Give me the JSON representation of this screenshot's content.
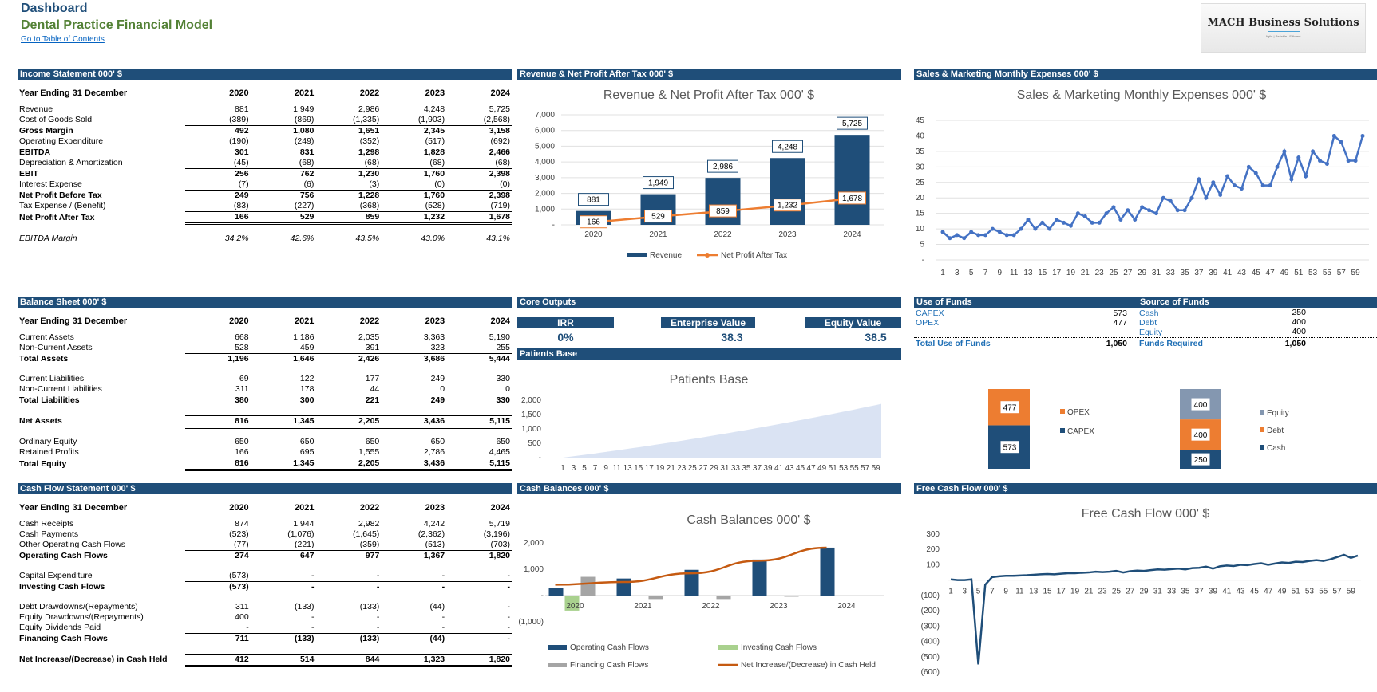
{
  "header": {
    "title": "Dashboard",
    "subtitle": "Dental Practice Financial Model",
    "link": "Go to Table of Contents"
  },
  "logo": {
    "name": "MACH Business Solutions",
    "tagline": "Agile | Reliable | Efficient"
  },
  "sections": {
    "income": "Income Statement 000' $",
    "rev_chart": "Revenue & Net Profit After Tax 000' $",
    "sales": "Sales & Marketing Monthly  Expenses  000' $",
    "balance": "Balance Sheet 000' $",
    "core": "Core Outputs",
    "patients": "Patients Base",
    "use_funds": "Use of Funds",
    "source_funds": "Source  of Funds",
    "cashflow": "Cash Flow Statement 000' $",
    "cash_balances": "Cash Balances 000' $",
    "fcf": "Free Cash Flow 000' $"
  },
  "years": [
    "2020",
    "2021",
    "2022",
    "2023",
    "2024"
  ],
  "year_label": "Year Ending 31 December",
  "income_rows": [
    {
      "label": "Revenue",
      "v": [
        "881",
        "1,949",
        "2,986",
        "4,248",
        "5,725"
      ],
      "style": ""
    },
    {
      "label": "Cost of Goods Sold",
      "v": [
        "(389)",
        "(869)",
        "(1,335)",
        "(1,903)",
        "(2,568)"
      ],
      "style": ""
    },
    {
      "label": "Gross Margin",
      "v": [
        "492",
        "1,080",
        "1,651",
        "2,345",
        "3,158"
      ],
      "style": "bold tl"
    },
    {
      "label": "Operating Expenditure",
      "v": [
        "(190)",
        "(249)",
        "(352)",
        "(517)",
        "(692)"
      ],
      "style": ""
    },
    {
      "label": "EBITDA",
      "v": [
        "301",
        "831",
        "1,298",
        "1,828",
        "2,466"
      ],
      "style": "bold tl"
    },
    {
      "label": "Depreciation & Amortization",
      "v": [
        "(45)",
        "(68)",
        "(68)",
        "(68)",
        "(68)"
      ],
      "style": ""
    },
    {
      "label": "EBIT",
      "v": [
        "256",
        "762",
        "1,230",
        "1,760",
        "2,398"
      ],
      "style": "bold tl"
    },
    {
      "label": "Interest Expense",
      "v": [
        "(7)",
        "(6)",
        "(3)",
        "(0)",
        "(0)"
      ],
      "style": ""
    },
    {
      "label": "Net Profit Before Tax",
      "v": [
        "249",
        "756",
        "1,228",
        "1,760",
        "2,398"
      ],
      "style": "bold tl"
    },
    {
      "label": "Tax Expense / (Benefit)",
      "v": [
        "(83)",
        "(227)",
        "(368)",
        "(528)",
        "(719)"
      ],
      "style": ""
    },
    {
      "label": "Net Profit After Tax",
      "v": [
        "166",
        "529",
        "859",
        "1,232",
        "1,678"
      ],
      "style": "bold tl db"
    }
  ],
  "ebitda_margin": {
    "label": "EBITDA Margin",
    "v": [
      "34.2%",
      "42.6%",
      "43.5%",
      "43.0%",
      "43.1%"
    ]
  },
  "balance_rows": [
    {
      "label": "Current Assets",
      "v": [
        "668",
        "1,186",
        "2,035",
        "3,363",
        "5,190"
      ],
      "style": ""
    },
    {
      "label": "Non-Current Assets",
      "v": [
        "528",
        "459",
        "391",
        "323",
        "255"
      ],
      "style": ""
    },
    {
      "label": "Total Assets",
      "v": [
        "1,196",
        "1,646",
        "2,426",
        "3,686",
        "5,444"
      ],
      "style": "bold tl"
    },
    {
      "gap": true
    },
    {
      "label": "Current Liabilities",
      "v": [
        "69",
        "122",
        "177",
        "249",
        "330"
      ],
      "style": ""
    },
    {
      "label": "Non-Current Liabilities",
      "v": [
        "311",
        "178",
        "44",
        "0",
        "0"
      ],
      "style": ""
    },
    {
      "label": "Total Liabilities",
      "v": [
        "380",
        "300",
        "221",
        "249",
        "330"
      ],
      "style": "bold tl"
    },
    {
      "gap": true
    },
    {
      "label": "Net Assets",
      "v": [
        "816",
        "1,345",
        "2,205",
        "3,436",
        "5,115"
      ],
      "style": "bold tl db"
    },
    {
      "gap": true
    },
    {
      "label": "Ordinary Equity",
      "v": [
        "650",
        "650",
        "650",
        "650",
        "650"
      ],
      "style": ""
    },
    {
      "label": "Retained Profits",
      "v": [
        "166",
        "695",
        "1,555",
        "2,786",
        "4,465"
      ],
      "style": ""
    },
    {
      "label": "Total Equity",
      "v": [
        "816",
        "1,345",
        "2,205",
        "3,436",
        "5,115"
      ],
      "style": "bold tl db"
    }
  ],
  "cashflow_rows": [
    {
      "label": "Cash Receipts",
      "v": [
        "874",
        "1,944",
        "2,982",
        "4,242",
        "5,719"
      ],
      "style": ""
    },
    {
      "label": "Cash Payments",
      "v": [
        "(523)",
        "(1,076)",
        "(1,645)",
        "(2,362)",
        "(3,196)"
      ],
      "style": ""
    },
    {
      "label": "Other Operating Cash Flows",
      "v": [
        "(77)",
        "(221)",
        "(359)",
        "(513)",
        "(703)"
      ],
      "style": ""
    },
    {
      "label": "Operating Cash Flows",
      "v": [
        "274",
        "647",
        "977",
        "1,367",
        "1,820"
      ],
      "style": "bold tl"
    },
    {
      "gap": true
    },
    {
      "label": "Capital Expenditure",
      "v": [
        "(573)",
        "-",
        "-",
        "-",
        "-"
      ],
      "style": ""
    },
    {
      "label": "Investing Cash Flows",
      "v": [
        "(573)",
        "-",
        "-",
        "-",
        "-"
      ],
      "style": "bold tl"
    },
    {
      "gap": true
    },
    {
      "label": "Debt Drawdowns/(Repayments)",
      "v": [
        "311",
        "(133)",
        "(133)",
        "(44)",
        "-"
      ],
      "style": ""
    },
    {
      "label": "Equity Drawdowns/(Repayments)",
      "v": [
        "400",
        "-",
        "-",
        "-",
        "-"
      ],
      "style": ""
    },
    {
      "label": "Equity Dividends Paid",
      "v": [
        "-",
        "-",
        "-",
        "-",
        "-"
      ],
      "style": ""
    },
    {
      "label": "Financing Cash Flows",
      "v": [
        "711",
        "(133)",
        "(133)",
        "(44)",
        "-"
      ],
      "style": "bold tl"
    },
    {
      "gap": true
    },
    {
      "label": "Net Increase/(Decrease) in Cash Held",
      "v": [
        "412",
        "514",
        "844",
        "1,323",
        "1,820"
      ],
      "style": "bold tl db"
    }
  ],
  "core_outputs": {
    "irr_label": "IRR",
    "irr_value": "0%",
    "ev_label": "Enterprise Value",
    "ev_value": "38.3",
    "eq_label": "Equity Value",
    "eq_value": "38.5"
  },
  "use_of_funds": {
    "rows": [
      {
        "label": "CAPEX",
        "value": "573"
      },
      {
        "label": "OPEX",
        "value": "477"
      }
    ],
    "total_label": "Total Use of Funds",
    "total_value": "1,050"
  },
  "source_of_funds": {
    "rows": [
      {
        "label": "Cash",
        "value": "250"
      },
      {
        "label": "Debt",
        "value": "400"
      },
      {
        "label": "Equity",
        "value": "400"
      }
    ],
    "total_label": "Funds Required",
    "total_value": "1,050"
  },
  "colors": {
    "navy": "#1f4e79",
    "orange": "#ed7d31",
    "green": "#a9d18e",
    "gray": "#a5a5a5",
    "steel": "#8497b0",
    "blue": "#4472c4",
    "area": "#dae3f3"
  },
  "chart_data": [
    {
      "type": "bar",
      "title": "Revenue & Net Profit After Tax 000' $",
      "categories": [
        "2020",
        "2021",
        "2022",
        "2023",
        "2024"
      ],
      "series": [
        {
          "name": "Revenue",
          "type": "bar",
          "values": [
            881,
            1949,
            2986,
            4248,
            5725
          ],
          "labels": [
            "881",
            "1,949",
            "2,986",
            "4,248",
            "5,725"
          ]
        },
        {
          "name": "Net Profit After Tax",
          "type": "line",
          "values": [
            166,
            529,
            859,
            1232,
            1678
          ],
          "labels": [
            "166",
            "529",
            "859",
            "1,232",
            "1,678"
          ]
        }
      ],
      "yticks": [
        "-",
        "1,000",
        "2,000",
        "3,000",
        "4,000",
        "5,000",
        "6,000",
        "7,000"
      ],
      "ylim": [
        0,
        7000
      ]
    },
    {
      "type": "line",
      "title": "Sales & Marketing Monthly  Expenses  000' $",
      "x": [
        1,
        2,
        3,
        4,
        5,
        6,
        7,
        8,
        9,
        10,
        11,
        12,
        13,
        14,
        15,
        16,
        17,
        18,
        19,
        20,
        21,
        22,
        23,
        24,
        25,
        26,
        27,
        28,
        29,
        30,
        31,
        32,
        33,
        34,
        35,
        36,
        37,
        38,
        39,
        40,
        41,
        42,
        43,
        44,
        45,
        46,
        47,
        48,
        49,
        50,
        51,
        52,
        53,
        54,
        55,
        56,
        57,
        58,
        59,
        60
      ],
      "values": [
        9,
        7,
        8,
        7,
        9,
        8,
        8,
        10,
        9,
        8,
        8,
        10,
        13,
        10,
        12,
        10,
        13,
        12,
        11,
        15,
        14,
        12,
        12,
        15,
        17,
        13,
        16,
        13,
        17,
        16,
        15,
        20,
        19,
        16,
        16,
        20,
        26,
        20,
        25,
        21,
        27,
        24,
        23,
        30,
        28,
        24,
        24,
        30,
        35,
        26,
        33,
        27,
        35,
        32,
        31,
        40,
        38,
        32,
        32,
        40
      ],
      "xticks": [
        "1",
        "3",
        "5",
        "7",
        "9",
        "11",
        "13",
        "15",
        "17",
        "19",
        "21",
        "23",
        "25",
        "27",
        "29",
        "31",
        "33",
        "35",
        "37",
        "39",
        "41",
        "43",
        "45",
        "47",
        "49",
        "51",
        "53",
        "55",
        "57",
        "59"
      ],
      "yticks": [
        "-",
        "5",
        "10",
        "15",
        "20",
        "25",
        "30",
        "35",
        "40",
        "45"
      ],
      "ylim": [
        0,
        45
      ]
    },
    {
      "type": "area",
      "title": "Patients Base",
      "x_range": [
        1,
        60
      ],
      "start": 0,
      "end": 1870,
      "xticks": [
        "1",
        "3",
        "5",
        "7",
        "9",
        "11",
        "13",
        "15",
        "17",
        "19",
        "21",
        "23",
        "25",
        "27",
        "29",
        "31",
        "33",
        "35",
        "37",
        "39",
        "41",
        "43",
        "45",
        "47",
        "49",
        "51",
        "53",
        "55",
        "57",
        "59"
      ],
      "yticks": [
        "-",
        "500",
        "1,000",
        "1,500",
        "2,000"
      ],
      "ylim": [
        0,
        2000
      ]
    },
    {
      "type": "bar",
      "title": "Use of Funds",
      "categories": [
        "Use of Funds"
      ],
      "series": [
        {
          "name": "CAPEX",
          "values": [
            573
          ]
        },
        {
          "name": "OPEX",
          "values": [
            477
          ]
        }
      ]
    },
    {
      "type": "bar",
      "title": "Source of Funds",
      "categories": [
        "Source of Funds"
      ],
      "series": [
        {
          "name": "Cash",
          "values": [
            250
          ]
        },
        {
          "name": "Debt",
          "values": [
            400
          ]
        },
        {
          "name": "Equity",
          "values": [
            400
          ]
        }
      ]
    },
    {
      "type": "bar",
      "title": "Cash Balances 000' $",
      "categories": [
        "2020",
        "2021",
        "2022",
        "2023",
        "2024"
      ],
      "series": [
        {
          "name": "Operating Cash Flows",
          "values": [
            274,
            647,
            977,
            1367,
            1820
          ]
        },
        {
          "name": "Investing Cash Flows",
          "values": [
            -573,
            0,
            0,
            0,
            0
          ]
        },
        {
          "name": "Financing Cash Flows",
          "values": [
            711,
            -133,
            -133,
            -44,
            0
          ]
        },
        {
          "name": "Net Increase/(Decrease) in Cash Held",
          "type": "line",
          "values": [
            412,
            514,
            844,
            1323,
            1820
          ]
        }
      ],
      "yticks": [
        "(1,000)",
        "-",
        "1,000",
        "2,000"
      ],
      "ylim": [
        -1000,
        2000
      ]
    },
    {
      "type": "line",
      "title": "Free Cash Flow 000' $",
      "x_range": [
        1,
        60
      ],
      "values": [
        5,
        0,
        0,
        5,
        -550,
        -30,
        20,
        25,
        28,
        28,
        30,
        32,
        35,
        38,
        40,
        38,
        42,
        45,
        45,
        48,
        50,
        55,
        52,
        55,
        60,
        50,
        58,
        62,
        60,
        65,
        70,
        68,
        72,
        75,
        70,
        78,
        80,
        88,
        75,
        90,
        95,
        92,
        100,
        98,
        105,
        110,
        100,
        108,
        115,
        112,
        120,
        118,
        125,
        130,
        125,
        135,
        150,
        165,
        145,
        160
      ],
      "xticks": [
        "1",
        "3",
        "5",
        "7",
        "9",
        "11",
        "13",
        "15",
        "17",
        "19",
        "21",
        "23",
        "25",
        "27",
        "29",
        "31",
        "33",
        "35",
        "37",
        "39",
        "41",
        "43",
        "45",
        "47",
        "49",
        "51",
        "53",
        "55",
        "57",
        "59"
      ],
      "yticks": [
        "(600)",
        "(500)",
        "(400)",
        "(300)",
        "(200)",
        "(100)",
        "-",
        "100",
        "200",
        "300"
      ],
      "ylim": [
        -600,
        300
      ]
    }
  ]
}
